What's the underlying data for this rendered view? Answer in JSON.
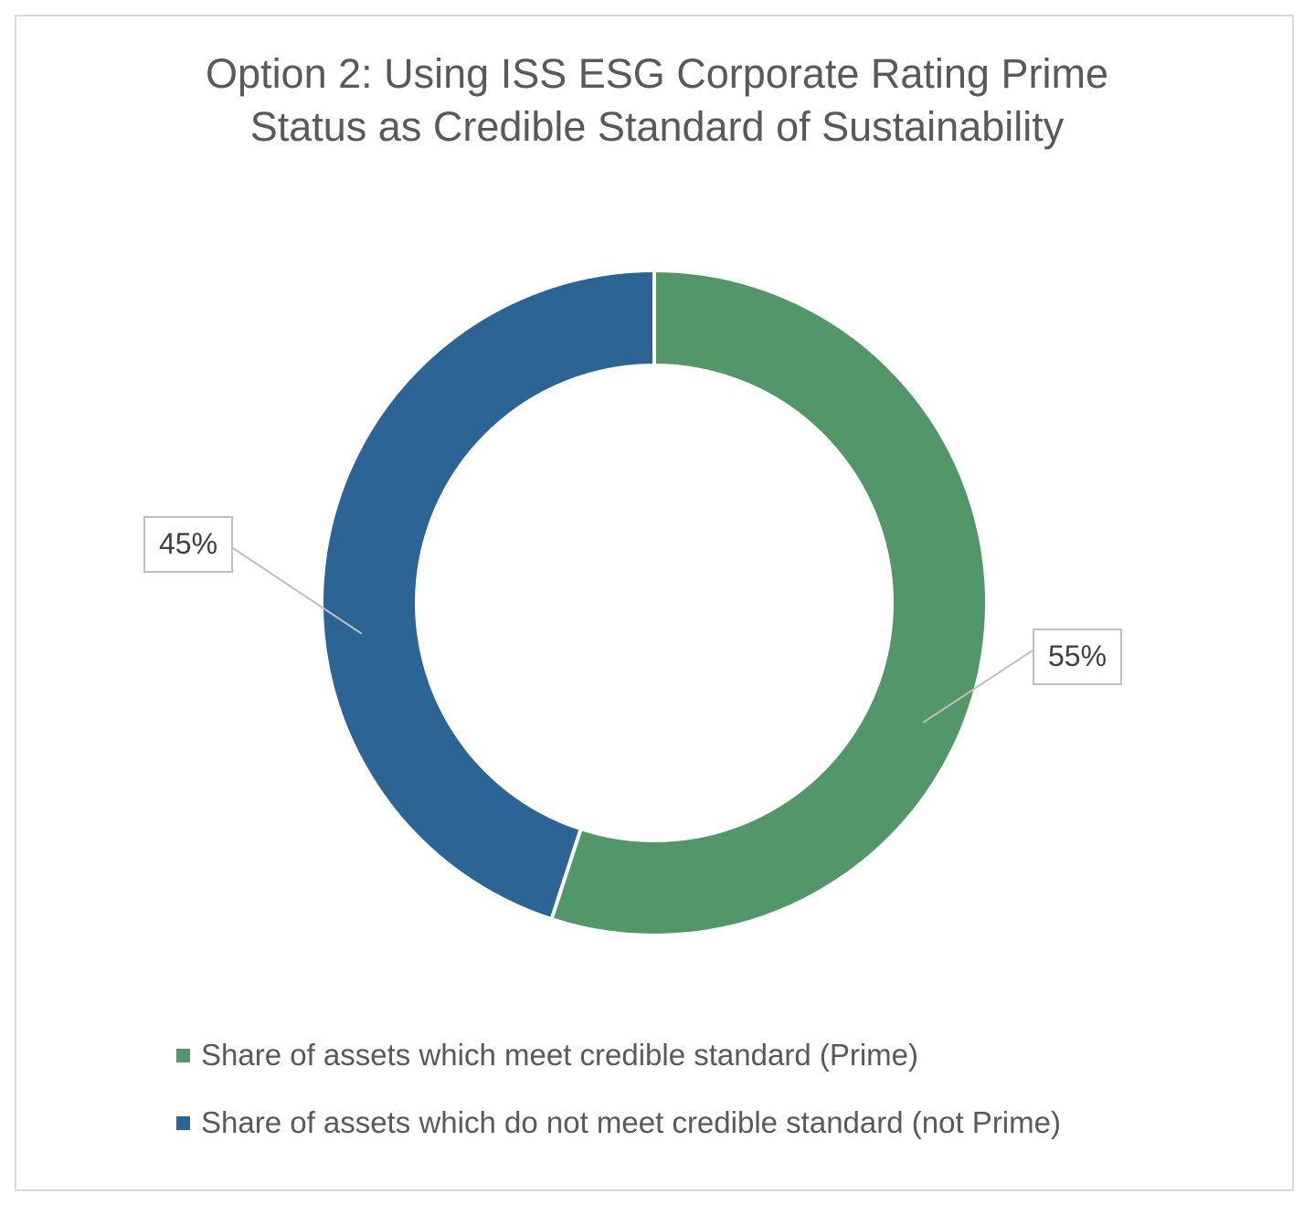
{
  "chart_data": {
    "type": "pie",
    "variant": "donut",
    "title_lines": [
      "Option 2: Using ISS ESG Corporate Rating Prime",
      "Status as Credible Standard of Sustainability"
    ],
    "slices": [
      {
        "label": "Share of assets which meet credible standard (Prime)",
        "value": 55,
        "display": "55%",
        "color": "#529669"
      },
      {
        "label": "Share of assets which do not meet credible standard (not Prime)",
        "value": 45,
        "display": "45%",
        "color": "#2c6496"
      }
    ],
    "legend_position": "bottom"
  }
}
